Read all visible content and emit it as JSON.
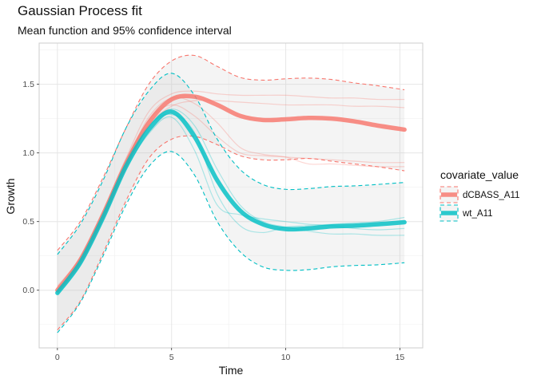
{
  "chart_data": {
    "type": "line",
    "title": "Gaussian Process fit",
    "subtitle": "Mean function and 95% confidence interval",
    "xlabel": "Time",
    "ylabel": "Growth",
    "xlim": [
      -0.8,
      16.0
    ],
    "ylim": [
      -0.42,
      1.8
    ],
    "x_ticks": [
      0,
      5,
      10,
      15
    ],
    "y_ticks": [
      0.0,
      0.5,
      1.0,
      1.5
    ],
    "x_tick_labels": [
      "0",
      "5",
      "10",
      "15"
    ],
    "y_tick_labels": [
      "0.0",
      "0.5",
      "1.0",
      "1.5"
    ],
    "grid": true,
    "legend": {
      "title": "covariate_value",
      "position": "right",
      "entries": [
        "dCBASS_A11",
        "wt_A11"
      ]
    },
    "colors": {
      "dCBASS_A11": "#F8766D",
      "wt_A11": "#00BFC4"
    },
    "x": [
      0,
      1,
      2,
      3,
      4,
      5,
      6,
      7,
      8,
      9,
      10,
      11,
      12,
      13,
      14,
      15.2
    ],
    "series": [
      {
        "name": "dCBASS_A11",
        "mean": [
          0.0,
          0.22,
          0.55,
          0.92,
          1.22,
          1.39,
          1.41,
          1.35,
          1.27,
          1.24,
          1.245,
          1.255,
          1.25,
          1.23,
          1.2,
          1.17
        ],
        "upper": [
          0.29,
          0.5,
          0.82,
          1.18,
          1.5,
          1.67,
          1.71,
          1.63,
          1.55,
          1.53,
          1.54,
          1.545,
          1.535,
          1.51,
          1.49,
          1.46
        ],
        "lower": [
          -0.29,
          -0.08,
          0.27,
          0.65,
          0.96,
          1.1,
          1.12,
          1.06,
          0.98,
          0.95,
          0.95,
          0.96,
          0.94,
          0.92,
          0.9,
          0.87
        ],
        "raw": [
          [
            0.03,
            0.24,
            0.58,
            0.96,
            1.3,
            1.43,
            1.45,
            1.43,
            1.42,
            1.42,
            1.42,
            1.41,
            1.4,
            1.4,
            1.39,
            1.39
          ],
          [
            -0.02,
            0.19,
            0.52,
            0.9,
            1.2,
            1.34,
            1.38,
            1.38,
            1.37,
            1.36,
            1.35,
            1.35,
            1.35,
            1.34,
            1.34,
            1.33
          ],
          [
            0.01,
            0.21,
            0.55,
            0.92,
            1.24,
            1.35,
            1.27,
            1.12,
            1.0,
            0.98,
            0.97,
            0.96,
            0.95,
            0.94,
            0.93,
            0.93
          ],
          [
            0.0,
            0.23,
            0.56,
            0.93,
            1.26,
            1.4,
            1.36,
            1.22,
            1.04,
            0.99,
            0.97,
            0.92,
            0.92,
            0.91,
            0.9,
            0.9
          ]
        ]
      },
      {
        "name": "wt_A11",
        "mean": [
          -0.02,
          0.2,
          0.53,
          0.9,
          1.17,
          1.3,
          1.12,
          0.8,
          0.58,
          0.48,
          0.445,
          0.45,
          0.465,
          0.47,
          0.48,
          0.495
        ],
        "upper": [
          0.26,
          0.48,
          0.8,
          1.18,
          1.45,
          1.58,
          1.42,
          1.1,
          0.88,
          0.77,
          0.735,
          0.74,
          0.755,
          0.76,
          0.77,
          0.785
        ],
        "lower": [
          -0.31,
          -0.09,
          0.25,
          0.62,
          0.9,
          1.01,
          0.84,
          0.5,
          0.28,
          0.17,
          0.145,
          0.15,
          0.17,
          0.18,
          0.185,
          0.2
        ],
        "raw": [
          [
            -0.01,
            0.22,
            0.55,
            0.94,
            1.2,
            1.28,
            1.15,
            0.7,
            0.47,
            0.42,
            0.46,
            0.47,
            0.48,
            0.49,
            0.5,
            0.53
          ],
          [
            -0.03,
            0.18,
            0.51,
            0.88,
            1.14,
            1.26,
            1.02,
            0.62,
            0.55,
            0.52,
            0.5,
            0.48,
            0.47,
            0.45,
            0.44,
            0.45
          ],
          [
            0.0,
            0.21,
            0.54,
            0.92,
            1.19,
            1.32,
            1.2,
            0.88,
            0.62,
            0.5,
            0.46,
            0.43,
            0.41,
            0.41,
            0.4,
            0.4
          ]
        ]
      }
    ]
  }
}
